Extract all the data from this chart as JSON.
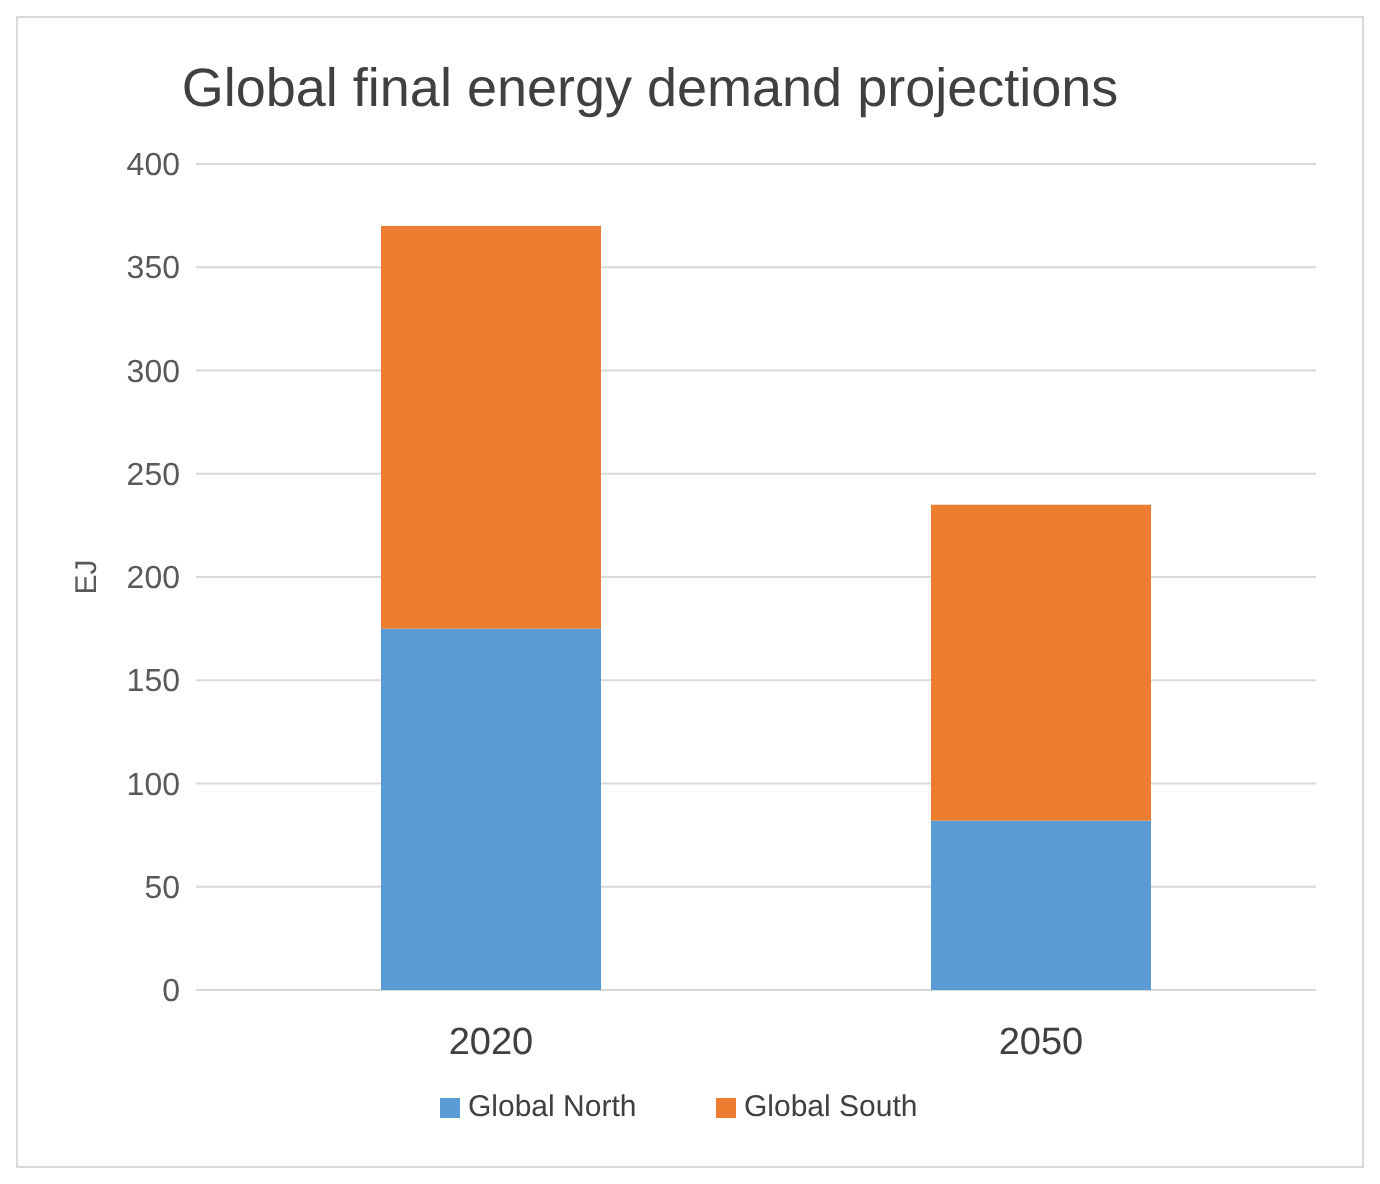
{
  "chart_data": {
    "type": "bar",
    "title": "Global final energy demand projections",
    "ylabel": "EJ",
    "categories": [
      "2020",
      "2050"
    ],
    "series": [
      {
        "name": "Global North",
        "color": "#5b9bd5",
        "values": [
          175,
          82
        ]
      },
      {
        "name": "Global South",
        "color": "#ed7d31",
        "values": [
          195,
          153
        ]
      }
    ],
    "stacked": true,
    "ylim": [
      0,
      400
    ],
    "yticks": [
      0,
      50,
      100,
      150,
      200,
      250,
      300,
      350,
      400
    ],
    "grid": "y",
    "legend": "bottom"
  }
}
